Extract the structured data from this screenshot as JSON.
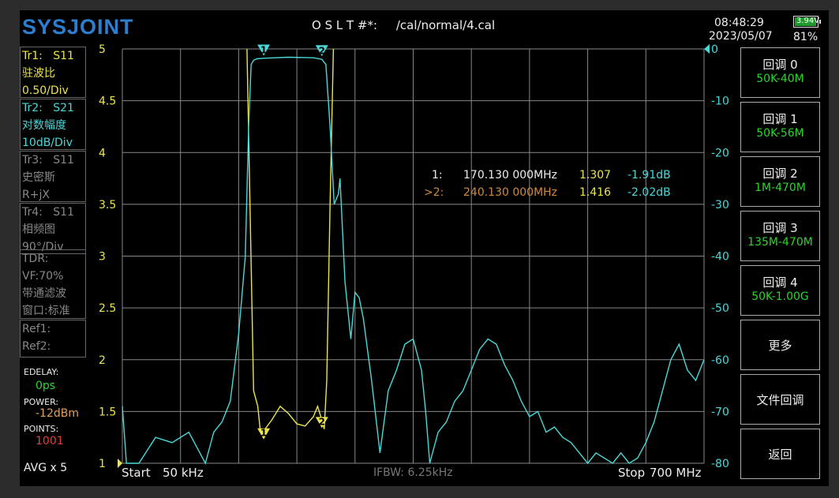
{
  "header": {
    "logo": "SYSJOINT",
    "calibration": "O S L T #*:     /cal/normal/4.cal",
    "time": "08:48:29",
    "date": "2023/05/07",
    "battery_voltage": "3.94V",
    "battery_percent": "81%"
  },
  "traces": [
    {
      "line1": "Tr1:   S11",
      "line2": "驻波比",
      "line3": "0.50/Div",
      "color": "#ece54a"
    },
    {
      "line1": "Tr2:   S21",
      "line2": "对数幅度",
      "line3": "10dB/Div",
      "color": "#48d8d8"
    },
    {
      "line1": "Tr3:   S11",
      "line2": "史密斯",
      "line3": "R+jX",
      "color": "#888888"
    },
    {
      "line1": "Tr4:   S11",
      "line2": "相频图",
      "line3": "90°/Div",
      "color": "#888888"
    }
  ],
  "tdr": {
    "line1": "TDR:",
    "line2": "VF:70%",
    "line3": "带通滤波",
    "line4": "窗口:标准"
  },
  "refs": {
    "line1": "Ref1:",
    "line2": "Ref2:"
  },
  "settings": {
    "edelay_label": "EDELAY:",
    "edelay_value": "0ps",
    "power_label": "POWER:",
    "power_value": "-12dBm",
    "points_label": "POINTS:",
    "points_value": "1001",
    "avg": "AVG x 5"
  },
  "softkeys": [
    {
      "label": "回调 0",
      "sub": "50K-40M"
    },
    {
      "label": "回调 1",
      "sub": "50K-56M"
    },
    {
      "label": "回调 2",
      "sub": "1M-470M"
    },
    {
      "label": "回调 3",
      "sub": "135M-470M"
    },
    {
      "label": "回调 4",
      "sub": "50K-1.00G"
    },
    {
      "label": "更多",
      "sub": ""
    },
    {
      "label": "文件回调",
      "sub": ""
    },
    {
      "label": "返回",
      "sub": ""
    }
  ],
  "sweep": {
    "start_label": "Start",
    "start_value": "50 kHz",
    "stop_label": "Stop",
    "stop_value": "700 MHz",
    "ifbw": "IFBW: 6.25kHz"
  },
  "markers": [
    {
      "id": "1:",
      "freq": "170.130 000MHz",
      "swr": "1.307",
      "db": "-1.91dB",
      "freq_mhz": 170.13,
      "active": false
    },
    {
      "id": ">2:",
      "freq": "240.130 000MHz",
      "swr": "1.416",
      "db": "-2.02dB",
      "freq_mhz": 240.13,
      "active": true
    }
  ],
  "chart_data": {
    "type": "line",
    "x_range_mhz": [
      0.05,
      700
    ],
    "grid": true,
    "y_left": {
      "ticks": [
        "5",
        "4.5",
        "4",
        "3.5",
        "3",
        "2.5",
        "2",
        "1.5",
        "1"
      ],
      "range": [
        1,
        5
      ],
      "color": "#ece54a"
    },
    "y_right": {
      "ticks": [
        "0",
        "-10",
        "-20",
        "-30",
        "-40",
        "-50",
        "-60",
        "-70",
        "-80"
      ],
      "range": [
        -80,
        0
      ],
      "color": "#48d8d8"
    },
    "series": [
      {
        "trace": "Tr1 S11 SWR",
        "color": "#ece54a",
        "x": [
          150,
          158,
          163,
          166,
          170,
          180,
          190,
          200,
          210,
          220,
          230,
          235,
          240,
          243,
          246,
          250,
          254
        ],
        "y": [
          5,
          1.7,
          1.55,
          1.32,
          1.31,
          1.42,
          1.55,
          1.48,
          1.38,
          1.36,
          1.45,
          1.55,
          1.42,
          1.33,
          1.8,
          3.5,
          5
        ]
      },
      {
        "trace": "Tr2 S21 LogMag",
        "color": "#48d8d8",
        "x": [
          0.05,
          5,
          20,
          40,
          60,
          80,
          100,
          110,
          120,
          130,
          140,
          148,
          152,
          155,
          158,
          162,
          170,
          200,
          230,
          240,
          245,
          250,
          255,
          260,
          262,
          268,
          275,
          280,
          285,
          290,
          300,
          310,
          320,
          330,
          340,
          350,
          360,
          365,
          370,
          380,
          390,
          400,
          410,
          420,
          430,
          440,
          450,
          460,
          470,
          480,
          490,
          500,
          510,
          520,
          530,
          540,
          550,
          560,
          570,
          580,
          590,
          600,
          610,
          620,
          630,
          640,
          650,
          660,
          670,
          680,
          690,
          700
        ],
        "y": [
          -69,
          -80,
          -80,
          -75,
          -76,
          -74,
          -80,
          -74,
          -72,
          -68,
          -55,
          -40,
          -15,
          -3,
          -2.2,
          -1.9,
          -1.8,
          -1.6,
          -1.7,
          -2.0,
          -3,
          -15,
          -30,
          -28,
          -25,
          -45,
          -56,
          -47,
          -48,
          -52,
          -64,
          -78,
          -66,
          -62,
          -57,
          -56,
          -62,
          -70,
          -80,
          -74,
          -72,
          -68,
          -66,
          -62,
          -58,
          -56,
          -57,
          -61,
          -64,
          -68,
          -71,
          -70,
          -74,
          -73,
          -75,
          -76,
          -78,
          -80,
          -78,
          -79,
          -80,
          -78,
          -80,
          -79,
          -76,
          -72,
          -66,
          -60,
          -57,
          -62,
          -64,
          -60
        ]
      }
    ],
    "marker_symbols": [
      "1",
      "2"
    ]
  }
}
